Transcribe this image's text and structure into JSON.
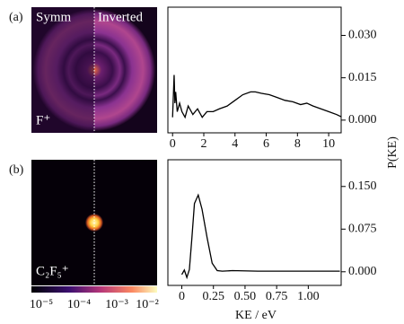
{
  "shared": {
    "y_label": "P(KE)",
    "x_label": "KE / eV"
  },
  "images": {
    "a_left": "Symm",
    "a_right": "Inverted",
    "a_ion": "F⁺",
    "b_ion": "C₂F₅⁺",
    "colorbar_labels": [
      "10⁻⁵",
      "10⁻⁴",
      "10⁻³",
      "10⁻²"
    ]
  },
  "chart_data": [
    {
      "type": "line",
      "panel_label": "(a)",
      "x": [
        0,
        0.1,
        0.15,
        0.2,
        0.3,
        0.45,
        0.6,
        0.8,
        1.0,
        1.3,
        1.6,
        1.9,
        2.2,
        2.6,
        3.0,
        3.5,
        4.0,
        4.5,
        5.0,
        5.3,
        5.7,
        6.2,
        6.7,
        7.2,
        7.7,
        8.2,
        8.6,
        9.0,
        9.5,
        10.0,
        10.5,
        10.8
      ],
      "values": [
        0.001,
        0.016,
        0.006,
        0.01,
        0.003,
        0.006,
        0.003,
        0.001,
        0.005,
        0.002,
        0.004,
        0.001,
        0.003,
        0.003,
        0.004,
        0.005,
        0.007,
        0.009,
        0.01,
        0.01,
        0.0095,
        0.009,
        0.008,
        0.007,
        0.0065,
        0.0055,
        0.006,
        0.005,
        0.004,
        0.003,
        0.002,
        0.0012
      ],
      "color": "#000000",
      "xlim": [
        -0.3,
        10.8
      ],
      "xticks": [
        0,
        2,
        4,
        6,
        8,
        10
      ],
      "ylim": [
        -0.0045,
        0.04
      ],
      "yticks": [
        {
          "value": 0,
          "label": "0.000"
        },
        {
          "value": 0.015,
          "label": "0.015"
        },
        {
          "value": 0.03,
          "label": "0.030"
        }
      ]
    },
    {
      "type": "line",
      "panel_label": "(b)",
      "x": [
        0,
        0.02,
        0.04,
        0.06,
        0.08,
        0.1,
        0.13,
        0.16,
        0.2,
        0.24,
        0.28,
        0.32,
        0.4,
        0.6,
        0.8,
        1.0,
        1.25
      ],
      "values": [
        -0.005,
        0.003,
        -0.01,
        0.004,
        0.06,
        0.12,
        0.135,
        0.11,
        0.06,
        0.015,
        0.002,
        0.001,
        0.002,
        0.001,
        0.001,
        0.001,
        0.001
      ],
      "color": "#000000",
      "xlim": [
        -0.11,
        1.26
      ],
      "xticks": [
        0,
        0.25,
        {
          "value": 0.5,
          "label": "0.50"
        },
        0.75,
        {
          "value": 1,
          "label": "1.00"
        }
      ],
      "ylim": [
        -0.024,
        0.197
      ],
      "yticks": [
        {
          "value": 0,
          "label": "0.000"
        },
        {
          "value": 0.075,
          "label": "0.075"
        },
        {
          "value": 0.15,
          "label": "0.150"
        }
      ]
    }
  ]
}
